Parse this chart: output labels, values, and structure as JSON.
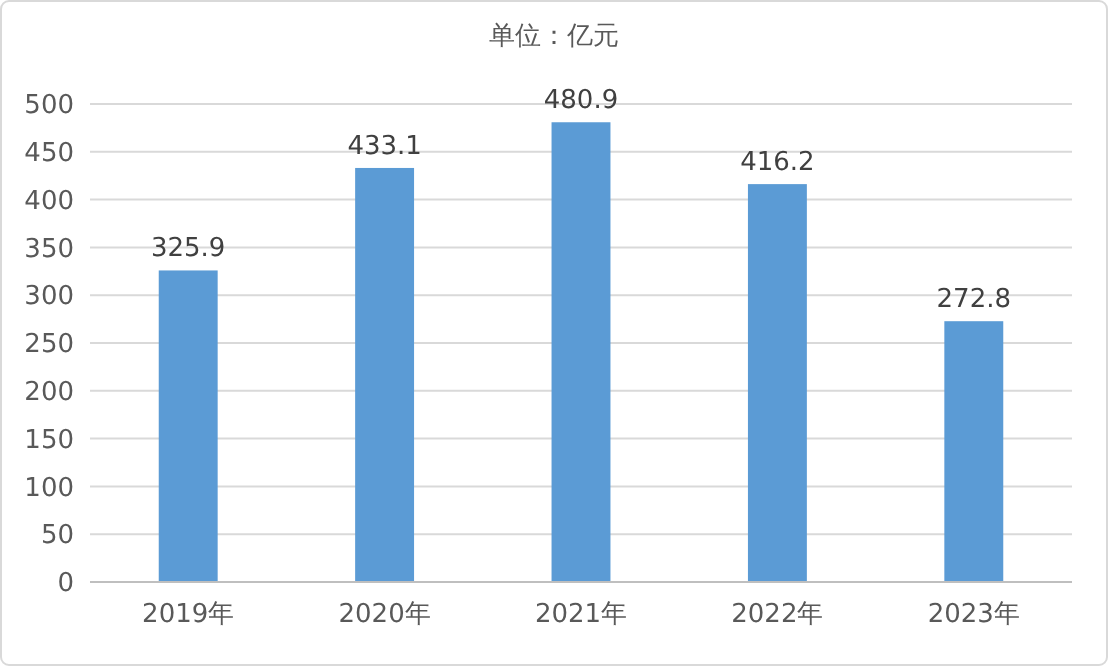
{
  "chart_data": {
    "type": "bar",
    "title": "单位：亿元",
    "categories": [
      "2019年",
      "2020年",
      "2021年",
      "2022年",
      "2023年"
    ],
    "values": [
      325.9,
      433.1,
      480.9,
      416.2,
      272.8
    ],
    "color": "#5b9bd5",
    "ylim": [
      0,
      500
    ],
    "yticks": [
      0,
      50,
      100,
      150,
      200,
      250,
      300,
      350,
      400,
      450,
      500
    ],
    "grid": "y",
    "data_labels": true
  }
}
